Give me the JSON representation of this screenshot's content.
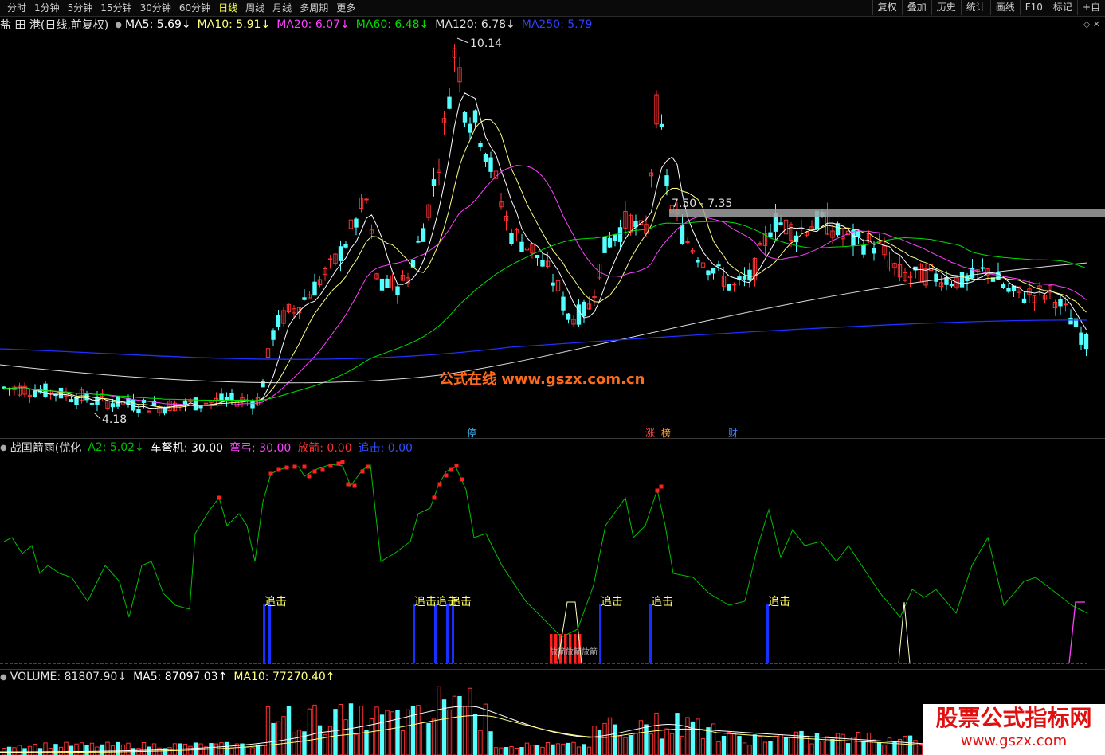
{
  "toolbar": {
    "periods": [
      "分时",
      "1分钟",
      "5分钟",
      "15分钟",
      "30分钟",
      "60分钟",
      "日线",
      "周线",
      "月线",
      "多周期",
      "更多"
    ],
    "active": "日线",
    "right_buttons": [
      "复权",
      "叠加",
      "历史",
      "统计",
      "画线",
      "F10",
      "标记",
      "+自"
    ]
  },
  "main_legend": {
    "title": "盐 田 港(日线,前复权)",
    "ma5": "MA5: 5.69↓",
    "ma10": "MA10: 5.91↓",
    "ma20": "MA20: 6.07↓",
    "ma60": "MA60: 6.48↓",
    "ma120": "MA120: 6.78↓",
    "ma250": "MA250: 5.79"
  },
  "main_annotations": {
    "high": "10.14",
    "low": "4.18",
    "band": "7.50 - 7.35",
    "markers": [
      "停",
      "涨",
      "榜",
      "财"
    ]
  },
  "indicator_legend": {
    "title": "战国箭雨(优化",
    "a2": "A2: 5.02↓",
    "chenujī": "车弩机: 30.00",
    "nugong": "弯弓: 30.00",
    "fangjian": "放箭: 0.00",
    "zhuiji": "追击: 0.00"
  },
  "indicator_labels": {
    "zhuiji": "追击",
    "fangjian": "放箭"
  },
  "volume_legend": {
    "volume": "VOLUME: 81807.90↓",
    "ma5": "MA5: 87097.03↑",
    "ma10": "MA10: 77270.40↑"
  },
  "watermarks": {
    "center": "公式在线  www.gszx.com.cn",
    "corner_title": "股票公式指标网",
    "corner_url": "www.gszx.com"
  },
  "colors": {
    "up": "#ff3232",
    "down": "#54ffff",
    "ma5": "#ffffff",
    "ma10": "#ffff80",
    "ma20": "#ff40ff",
    "ma60": "#00e000",
    "ma120": "#e0e0e0",
    "ma250": "#2030ff",
    "a2": "#00c000"
  }
}
